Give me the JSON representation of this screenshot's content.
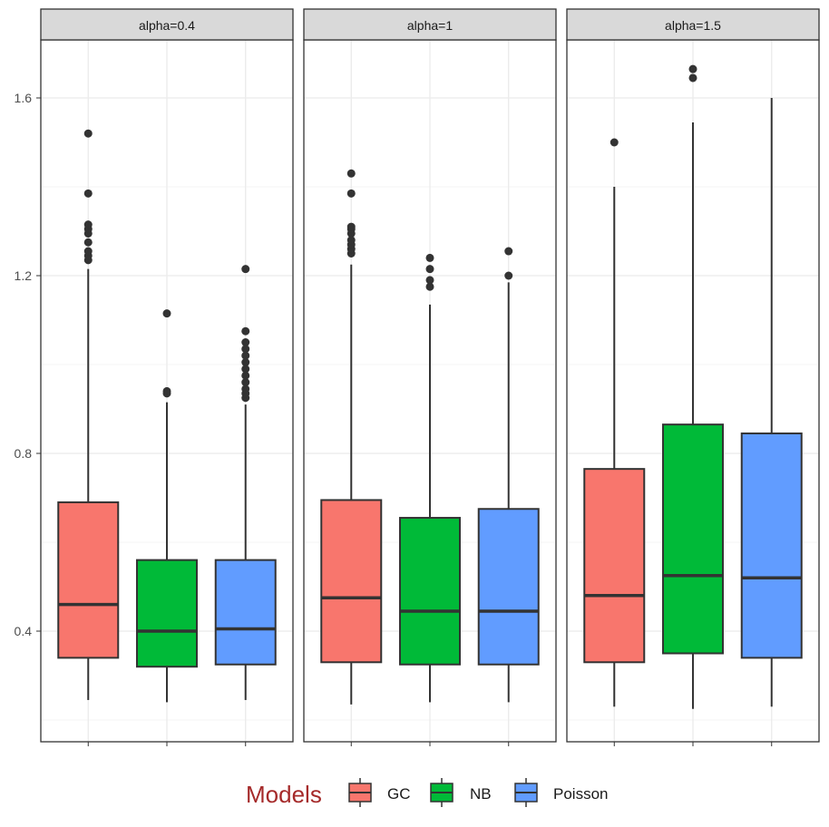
{
  "chart_data": {
    "type": "boxplot",
    "facets": [
      "alpha=0.4",
      "alpha=1",
      "alpha=1.5"
    ],
    "categories": [
      "GC",
      "NB",
      "Poisson"
    ],
    "ylim": [
      0.195,
      1.7
    ],
    "yticks": [
      0.4,
      0.8,
      1.2,
      1.6
    ],
    "ytick_labels": [
      "0.4",
      "0.8",
      "1.2",
      "1.6"
    ],
    "legend": {
      "title": "Models",
      "position": "bottom",
      "entries": [
        {
          "name": "GC",
          "color": "#f8766d"
        },
        {
          "name": "NB",
          "color": "#00ba38"
        },
        {
          "name": "Poisson",
          "color": "#619cff"
        }
      ]
    },
    "series": [
      {
        "facet": "alpha=0.4",
        "boxes": [
          {
            "model": "GC",
            "lower_whisker": 0.245,
            "q1": 0.34,
            "median": 0.46,
            "q3": 0.69,
            "upper_whisker": 1.215,
            "outliers": [
              1.235,
              1.245,
              1.255,
              1.275,
              1.295,
              1.305,
              1.315,
              1.385,
              1.52
            ]
          },
          {
            "model": "NB",
            "lower_whisker": 0.24,
            "q1": 0.32,
            "median": 0.4,
            "q3": 0.56,
            "upper_whisker": 0.915,
            "outliers": [
              0.935,
              0.94,
              1.115
            ]
          },
          {
            "model": "Poisson",
            "lower_whisker": 0.245,
            "q1": 0.325,
            "median": 0.405,
            "q3": 0.56,
            "upper_whisker": 0.91,
            "outliers": [
              0.925,
              0.935,
              0.945,
              0.96,
              0.975,
              0.99,
              1.005,
              1.02,
              1.035,
              1.05,
              1.075,
              1.215
            ]
          }
        ]
      },
      {
        "facet": "alpha=1",
        "boxes": [
          {
            "model": "GC",
            "lower_whisker": 0.235,
            "q1": 0.33,
            "median": 0.475,
            "q3": 0.695,
            "upper_whisker": 1.225,
            "outliers": [
              1.25,
              1.26,
              1.27,
              1.28,
              1.295,
              1.305,
              1.31,
              1.385,
              1.43
            ]
          },
          {
            "model": "NB",
            "lower_whisker": 0.24,
            "q1": 0.325,
            "median": 0.445,
            "q3": 0.655,
            "upper_whisker": 1.135,
            "outliers": [
              1.175,
              1.19,
              1.215,
              1.24
            ]
          },
          {
            "model": "Poisson",
            "lower_whisker": 0.24,
            "q1": 0.325,
            "median": 0.445,
            "q3": 0.675,
            "upper_whisker": 1.185,
            "outliers": [
              1.2,
              1.255
            ]
          }
        ]
      },
      {
        "facet": "alpha=1.5",
        "boxes": [
          {
            "model": "GC",
            "lower_whisker": 0.23,
            "q1": 0.33,
            "median": 0.48,
            "q3": 0.765,
            "upper_whisker": 1.4,
            "outliers": [
              1.5
            ]
          },
          {
            "model": "NB",
            "lower_whisker": 0.225,
            "q1": 0.35,
            "median": 0.525,
            "q3": 0.865,
            "upper_whisker": 1.545,
            "outliers": [
              1.645,
              1.665
            ]
          },
          {
            "model": "Poisson",
            "lower_whisker": 0.23,
            "q1": 0.34,
            "median": 0.52,
            "q3": 0.845,
            "upper_whisker": 1.6,
            "outliers": []
          }
        ]
      }
    ]
  }
}
